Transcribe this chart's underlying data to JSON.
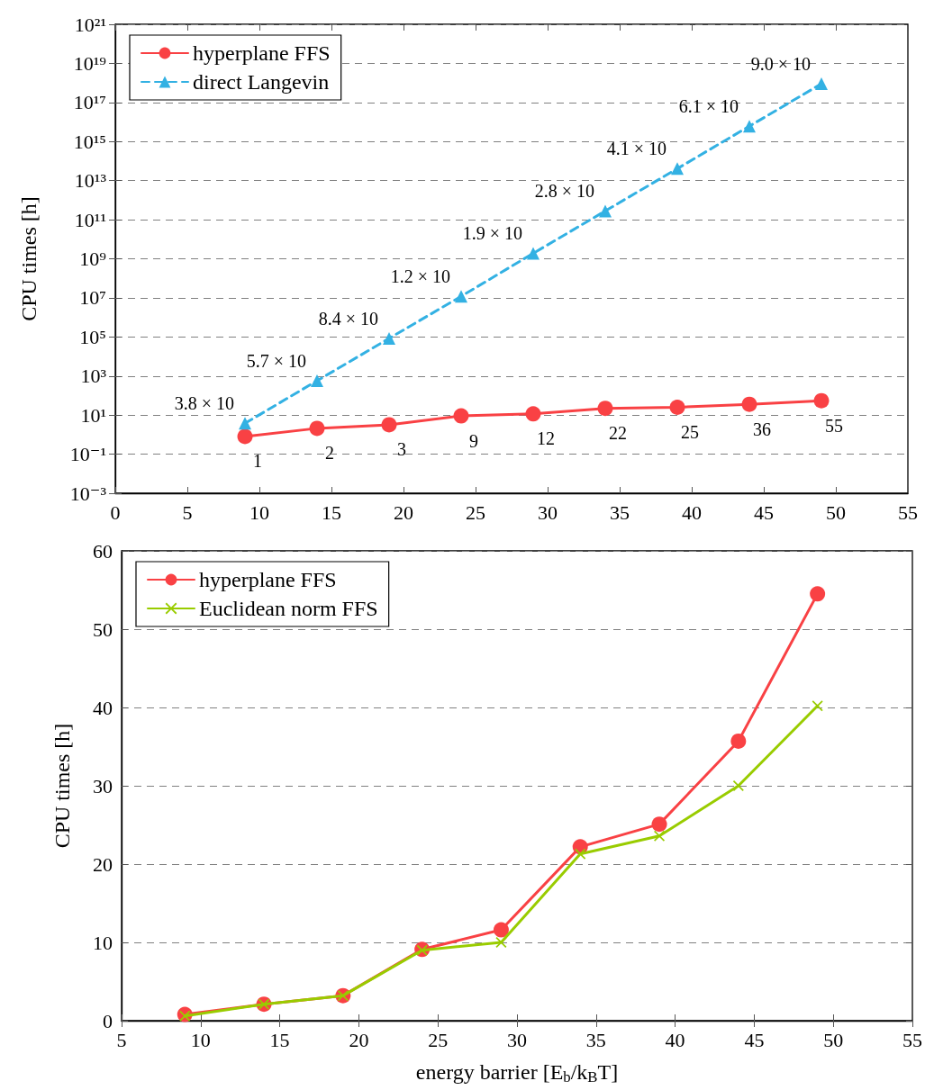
{
  "chart_data": [
    {
      "type": "line",
      "ylabel": "CPU times [h]",
      "log": "y",
      "grid": "y",
      "legend": "top left",
      "xlim": [
        0,
        55
      ],
      "xticks": [
        0,
        5,
        10,
        15,
        20,
        25,
        30,
        35,
        40,
        45,
        50,
        55
      ],
      "ylim": [
        0.001,
        1e+21
      ],
      "yticks": [
        {
          "value": 0.001,
          "label": "10⁻³"
        },
        {
          "value": 0.1,
          "label": "10⁻¹"
        },
        {
          "value": 10,
          "label": "10¹"
        },
        {
          "value": 1000,
          "label": "10³"
        },
        {
          "value": 100000,
          "label": "10⁵"
        },
        {
          "value": 10000000,
          "label": "10⁷"
        },
        {
          "value": 1000000000,
          "label": "10⁹"
        },
        {
          "value": 100000000000.0,
          "label": "10¹¹"
        },
        {
          "value": 10000000000000.0,
          "label": "10¹³"
        },
        {
          "value": 1000000000000000.0,
          "label": "10¹⁵"
        },
        {
          "value": 1e+17,
          "label": "10¹⁷"
        },
        {
          "value": 1e+19,
          "label": "10¹⁹"
        },
        {
          "value": 1e+21,
          "label": "10²¹"
        }
      ],
      "annotations": [
        {
          "text": "3.8 × 10",
          "x": 9,
          "y": 3.8
        },
        {
          "text": "5.7 × 10",
          "x": 14,
          "y": 570
        },
        {
          "text": "8.4 × 10",
          "x": 19,
          "y": 84000
        },
        {
          "text": "1.2 × 10",
          "x": 24,
          "y": 12000000
        },
        {
          "text": "1.9 × 10",
          "x": 29,
          "y": 1900000000
        },
        {
          "text": "2.8 × 10",
          "x": 34,
          "y": 280000000000.0
        },
        {
          "text": "4.1 × 10",
          "x": 39,
          "y": 41000000000000.0
        },
        {
          "text": "6.1 × 10",
          "x": 44,
          "y": 6100000000000000.0
        },
        {
          "text": "9.0 × 10",
          "x": 49,
          "y": 9e+17
        }
      ],
      "x": [
        9,
        14,
        19,
        24,
        29,
        34,
        39,
        44,
        49
      ],
      "series": [
        {
          "name": "hyperplane FFS",
          "color": "#f94144",
          "marker": "circle",
          "line_style": "solid",
          "values": [
            0.8,
            2.1,
            3.2,
            9.1,
            11.6,
            22.2,
            25.1,
            35.7,
            54.5
          ],
          "value_labels": [
            "1",
            "2",
            "3",
            "9",
            "12",
            "22",
            "25",
            "36",
            "55"
          ]
        },
        {
          "name": "direct Langevin",
          "color": "#33b1e3",
          "marker": "triangle",
          "line_style": "dashed",
          "values": [
            3.8,
            570,
            84000,
            12000000,
            1900000000,
            280000000000.0,
            41000000000000.0,
            6100000000000000.0,
            9e+17
          ]
        }
      ]
    },
    {
      "type": "line",
      "xlabel": "energy barrier [E$_{b}$/k$_{B}$T]",
      "ylabel": "CPU times [h]",
      "grid": "y",
      "legend": "top left",
      "xlim": [
        5,
        55
      ],
      "xticks": [
        5,
        10,
        15,
        20,
        25,
        30,
        35,
        40,
        45,
        50,
        55
      ],
      "ylim": [
        0,
        60
      ],
      "yticks": [
        0,
        10,
        20,
        30,
        40,
        50,
        60
      ],
      "x": [
        9,
        14,
        19,
        24,
        29,
        34,
        39,
        44,
        49
      ],
      "series": [
        {
          "name": "hyperplane FFS",
          "color": "#f94144",
          "marker": "circle",
          "values": [
            0.8,
            2.1,
            3.2,
            9.1,
            11.6,
            22.2,
            25.1,
            35.7,
            54.5
          ]
        },
        {
          "name": "Euclidean norm FFS",
          "color": "#99cc00",
          "marker": "cross",
          "values": [
            0.6,
            2.1,
            3.2,
            9.0,
            10.0,
            21.3,
            23.6,
            30.0,
            40.2
          ]
        }
      ]
    }
  ]
}
